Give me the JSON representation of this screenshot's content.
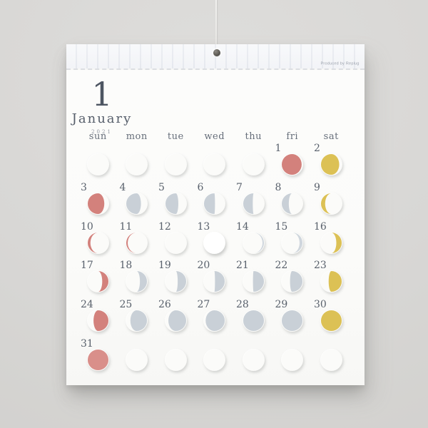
{
  "calendar": {
    "month_number": "1",
    "month_name": "January",
    "year": "2021",
    "credit": "Produced by Replug",
    "day_headers": [
      "sun",
      "mon",
      "tue",
      "wed",
      "thu",
      "fri",
      "sat"
    ],
    "moon_colors": {
      "sunday_red": "#d3817c",
      "sunday_red_light": "#d98f8a",
      "saturday_yellow": "#dcc155",
      "weekday_gray": "#c9d0d7",
      "weekday_gray_faint": "#cfd6dd",
      "new_moon_white": "#ffffff"
    },
    "weeks": [
      [
        {
          "day": "",
          "moon": null
        },
        {
          "day": "",
          "moon": null
        },
        {
          "day": "",
          "moon": null
        },
        {
          "day": "",
          "moon": null
        },
        {
          "day": "",
          "moon": null
        },
        {
          "day": "1",
          "moon": {
            "color": "sunday_red",
            "side": "left",
            "lit": 0.96
          }
        },
        {
          "day": "2",
          "moon": {
            "color": "saturday_yellow",
            "side": "left",
            "lit": 0.88
          }
        }
      ],
      [
        {
          "day": "3",
          "moon": {
            "color": "sunday_red",
            "side": "left",
            "lit": 0.8
          }
        },
        {
          "day": "4",
          "moon": {
            "color": "weekday_gray",
            "side": "left",
            "lit": 0.71
          }
        },
        {
          "day": "5",
          "moon": {
            "color": "weekday_gray",
            "side": "left",
            "lit": 0.62
          }
        },
        {
          "day": "6",
          "moon": {
            "color": "weekday_gray",
            "side": "left",
            "lit": 0.53
          }
        },
        {
          "day": "7",
          "moon": {
            "color": "weekday_gray",
            "side": "left",
            "lit": 0.46
          }
        },
        {
          "day": "8",
          "moon": {
            "color": "weekday_gray",
            "side": "left",
            "lit": 0.34
          }
        },
        {
          "day": "9",
          "moon": {
            "color": "saturday_yellow",
            "side": "left",
            "lit": 0.2
          }
        }
      ],
      [
        {
          "day": "10",
          "moon": {
            "color": "sunday_red",
            "side": "left",
            "lit": 0.13
          }
        },
        {
          "day": "11",
          "moon": {
            "color": "sunday_red",
            "side": "left",
            "lit": 0.07
          }
        },
        {
          "day": "12",
          "moon": {
            "color": "new_moon_white",
            "side": "left",
            "lit": 0
          }
        },
        {
          "day": "13",
          "moon": {
            "color": "new_moon_white",
            "side": "full",
            "lit": 1
          }
        },
        {
          "day": "14",
          "moon": {
            "color": "weekday_gray_faint",
            "side": "right",
            "lit": 0.07
          }
        },
        {
          "day": "15",
          "moon": {
            "color": "weekday_gray_faint",
            "side": "right",
            "lit": 0.14
          }
        },
        {
          "day": "16",
          "moon": {
            "color": "saturday_yellow",
            "side": "right",
            "lit": 0.26
          }
        }
      ],
      [
        {
          "day": "17",
          "moon": {
            "color": "sunday_red",
            "side": "right",
            "lit": 0.3
          }
        },
        {
          "day": "18",
          "moon": {
            "color": "weekday_gray",
            "side": "right",
            "lit": 0.34
          }
        },
        {
          "day": "19",
          "moon": {
            "color": "weekday_gray",
            "side": "right",
            "lit": 0.41
          }
        },
        {
          "day": "20",
          "moon": {
            "color": "weekday_gray",
            "side": "right",
            "lit": 0.47
          }
        },
        {
          "day": "21",
          "moon": {
            "color": "weekday_gray",
            "side": "right",
            "lit": 0.53
          }
        },
        {
          "day": "22",
          "moon": {
            "color": "weekday_gray",
            "side": "right",
            "lit": 0.6
          }
        },
        {
          "day": "23",
          "moon": {
            "color": "saturday_yellow",
            "side": "right",
            "lit": 0.63
          }
        }
      ],
      [
        {
          "day": "24",
          "moon": {
            "color": "sunday_red",
            "side": "right",
            "lit": 0.72
          }
        },
        {
          "day": "25",
          "moon": {
            "color": "weekday_gray",
            "side": "right",
            "lit": 0.8
          }
        },
        {
          "day": "26",
          "moon": {
            "color": "weekday_gray",
            "side": "right",
            "lit": 0.86
          }
        },
        {
          "day": "27",
          "moon": {
            "color": "weekday_gray",
            "side": "right",
            "lit": 0.92
          }
        },
        {
          "day": "28",
          "moon": {
            "color": "weekday_gray",
            "side": "full",
            "lit": 1
          }
        },
        {
          "day": "29",
          "moon": {
            "color": "weekday_gray",
            "side": "full",
            "lit": 1
          }
        },
        {
          "day": "30",
          "moon": {
            "color": "saturday_yellow",
            "side": "full",
            "lit": 1
          }
        }
      ],
      [
        {
          "day": "31",
          "moon": {
            "color": "sunday_red_light",
            "side": "full",
            "lit": 1
          }
        },
        {
          "day": "",
          "moon": null
        },
        {
          "day": "",
          "moon": null
        },
        {
          "day": "",
          "moon": null
        },
        {
          "day": "",
          "moon": null
        },
        {
          "day": "",
          "moon": null
        },
        {
          "day": "",
          "moon": null
        }
      ]
    ]
  }
}
